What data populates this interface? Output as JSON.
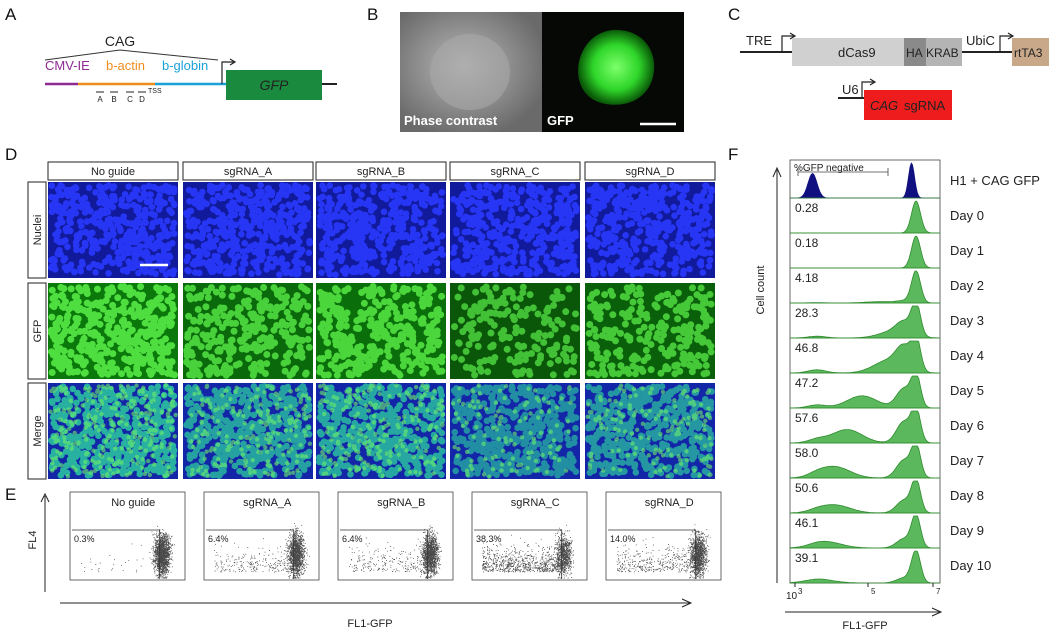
{
  "panel_labels": [
    "A",
    "B",
    "C",
    "D",
    "E",
    "F"
  ],
  "a": {
    "promoter": "CAG",
    "parts": [
      "CMV-IE",
      "b-actin",
      "b-globin"
    ],
    "gene": "GFP",
    "sites": [
      "A",
      "B",
      "C",
      "D"
    ],
    "tss": "TSS"
  },
  "b": {
    "images": [
      "Phase contrast",
      "GFP"
    ]
  },
  "c": {
    "tre": "TRE",
    "dcas9": "dCas9",
    "ha": "HA",
    "krab": "KRAB",
    "ubic": "UbiC",
    "rtta3": "rtTA3",
    "u6": "U6",
    "sgrna_target": "CAG",
    "sgrna": "sgRNA"
  },
  "d": {
    "columns": [
      "No guide",
      "sgRNA_A",
      "sgRNA_B",
      "sgRNA_C",
      "sgRNA_D"
    ],
    "rows": [
      "Nuclei",
      "GFP",
      "Merge"
    ]
  },
  "e": {
    "columns": [
      "No guide",
      "sgRNA_A",
      "sgRNA_B",
      "sgRNA_C",
      "sgRNA_D"
    ],
    "gates": [
      "0.3%",
      "6.4%",
      "6.4%",
      "38.3%",
      "14.0%"
    ],
    "y_label": "FL4",
    "x_label": "FL1-GFP"
  },
  "f": {
    "gate_label": "%GFP negative",
    "control": "H1 + CAG GFP",
    "rows": [
      {
        "day": "Day 0",
        "negative": "0.28"
      },
      {
        "day": "Day 1",
        "negative": "0.18"
      },
      {
        "day": "Day 2",
        "negative": "4.18"
      },
      {
        "day": "Day 3",
        "negative": "28.3"
      },
      {
        "day": "Day 4",
        "negative": "46.8"
      },
      {
        "day": "Day 5",
        "negative": "47.2"
      },
      {
        "day": "Day 6",
        "negative": "57.6"
      },
      {
        "day": "Day 7",
        "negative": "58.0"
      },
      {
        "day": "Day 8",
        "negative": "50.6"
      },
      {
        "day": "Day 9",
        "negative": "46.1"
      },
      {
        "day": "Day 10",
        "negative": "39.1"
      }
    ],
    "y_label": "Cell count",
    "x_label": "FL1-GFP",
    "xticks": [
      {
        "base": "10",
        "exp": "3"
      },
      {
        "exp": "5"
      },
      {
        "exp": "7"
      }
    ]
  }
}
